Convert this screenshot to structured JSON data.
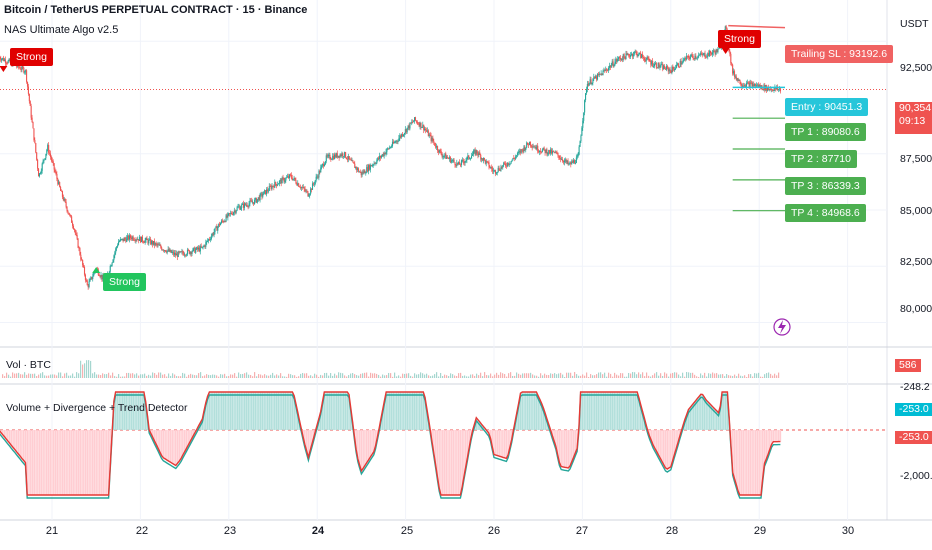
{
  "header": {
    "symbol_title": "Bitcoin / TetherUS PERPETUAL CONTRACT · 15 · Binance",
    "indicator_title": "NAS Ultimate Algo v2.5",
    "currency": "USDT"
  },
  "price_axis": {
    "ticks": [
      "92,500.0",
      "87,500.0",
      "85,000.0",
      "82,500.0",
      "80,000.0"
    ],
    "current_price": "90,354.2",
    "countdown": "09:13"
  },
  "signals": {
    "strong_sell_1": "Strong",
    "strong_buy": "Strong",
    "strong_sell_2": "Strong"
  },
  "levels": {
    "trailing_sl": "Trailing SL : 93192.6",
    "entry": "Entry : 90451.3",
    "tp1": "TP 1 : 89080.6",
    "tp2": "TP 2 : 87710",
    "tp3": "TP 3 : 86339.3",
    "tp4": "TP 4 : 84968.6"
  },
  "volume_pane": {
    "name": "Vol · BTC",
    "value": "586"
  },
  "oscillator_pane": {
    "name": "Volume + Divergence + Trend Detector",
    "ticks": [
      "-248.2",
      "-2,000.0"
    ],
    "value_a": "-253.0",
    "value_b": "-253.0"
  },
  "time_axis": {
    "ticks": [
      "21",
      "22",
      "23",
      "24",
      "25",
      "26",
      "27",
      "28",
      "29",
      "30"
    ],
    "bold_tick": "24"
  },
  "colors": {
    "up": "#26a69a",
    "down": "#ef5350",
    "sell_label": "#e00000",
    "buy_label": "#22c55e",
    "trailing": "#f06262",
    "entry": "#26c6da",
    "tp": "#4caf50",
    "osc_red": "#e53935",
    "osc_teal": "#26a69a"
  },
  "chart_data": {
    "type": "candlestick",
    "symbol": "Bitcoin / TetherUS PERPETUAL CONTRACT",
    "interval": "15",
    "x_days": [
      21,
      22,
      23,
      24,
      25,
      26,
      27,
      28,
      29,
      30
    ],
    "ylim": [
      79000,
      93800
    ],
    "yticks": [
      80000,
      82500,
      85000,
      87500,
      92500
    ],
    "price_path": [
      [
        20.4,
        91800
      ],
      [
        20.7,
        91200
      ],
      [
        20.85,
        86500
      ],
      [
        20.95,
        87800
      ],
      [
        21.1,
        85800
      ],
      [
        21.25,
        84200
      ],
      [
        21.4,
        81600
      ],
      [
        21.5,
        82400
      ],
      [
        21.6,
        81800
      ],
      [
        21.75,
        83600
      ],
      [
        21.9,
        83800
      ],
      [
        22.1,
        83600
      ],
      [
        22.4,
        83000
      ],
      [
        22.7,
        83300
      ],
      [
        22.9,
        84400
      ],
      [
        23.1,
        85100
      ],
      [
        23.3,
        85400
      ],
      [
        23.5,
        86100
      ],
      [
        23.7,
        86500
      ],
      [
        23.9,
        85700
      ],
      [
        24.1,
        87300
      ],
      [
        24.3,
        87500
      ],
      [
        24.5,
        86600
      ],
      [
        24.7,
        87300
      ],
      [
        24.9,
        88100
      ],
      [
        25.1,
        89000
      ],
      [
        25.2,
        88700
      ],
      [
        25.4,
        87500
      ],
      [
        25.6,
        87000
      ],
      [
        25.8,
        87600
      ],
      [
        26.0,
        86700
      ],
      [
        26.2,
        87200
      ],
      [
        26.4,
        88000
      ],
      [
        26.5,
        87700
      ],
      [
        26.7,
        87500
      ],
      [
        26.85,
        87000
      ],
      [
        26.95,
        87300
      ],
      [
        27.05,
        90600
      ],
      [
        27.2,
        91000
      ],
      [
        27.4,
        91700
      ],
      [
        27.6,
        92000
      ],
      [
        27.8,
        91500
      ],
      [
        28.0,
        91200
      ],
      [
        28.2,
        91800
      ],
      [
        28.4,
        91900
      ],
      [
        28.55,
        92100
      ],
      [
        28.62,
        93100
      ],
      [
        28.7,
        91100
      ],
      [
        28.8,
        90600
      ],
      [
        28.95,
        90550
      ],
      [
        29.1,
        90400
      ],
      [
        29.25,
        90354
      ]
    ],
    "current_price": 90354.2,
    "entry": 90451.3,
    "trailing_sl": 93192.6,
    "take_profits": [
      89080.6,
      87710,
      86339.3,
      84968.6
    ],
    "signals": [
      {
        "x": 20.45,
        "type": "sell",
        "label": "Strong"
      },
      {
        "x": 21.5,
        "type": "buy",
        "label": "Strong"
      },
      {
        "x": 28.62,
        "type": "sell",
        "label": "Strong"
      }
    ],
    "oscillator": {
      "ticks": [
        -248.2,
        -2000.0
      ],
      "last": -253.0
    },
    "volume": {
      "last": 586
    }
  }
}
